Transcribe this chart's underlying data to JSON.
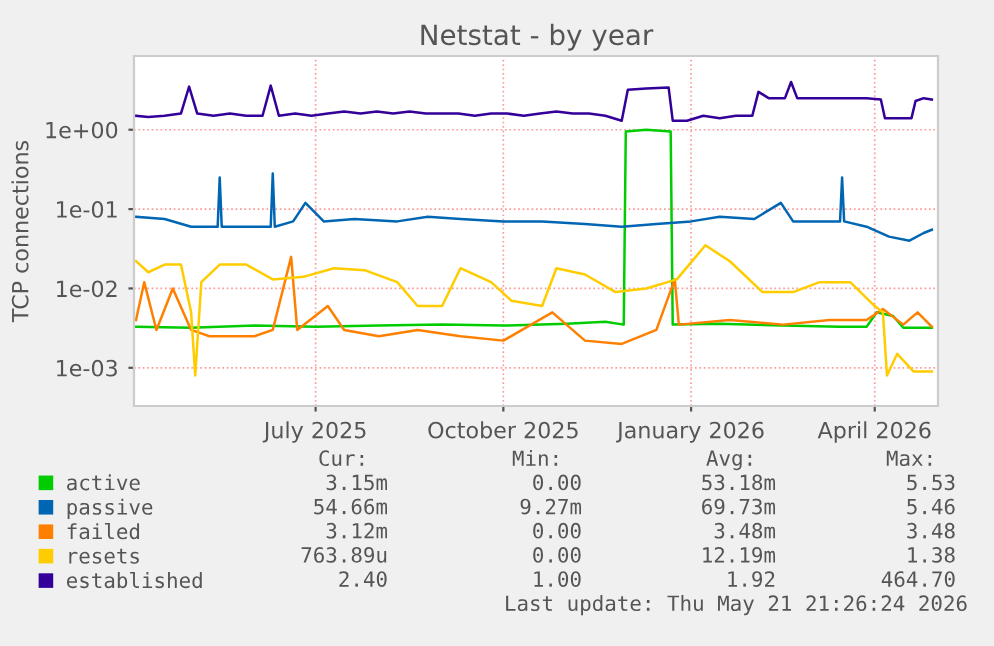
{
  "chart_data": {
    "type": "line",
    "title": "Netstat - by year",
    "ylabel": "TCP connections",
    "log": "y",
    "grid": true,
    "legend": "bottom",
    "xlim": [
      "2025-04-03",
      "2026-05-02"
    ],
    "xticks": [
      {
        "value": "2025-07-01",
        "label": "July 2025"
      },
      {
        "value": "2025-10-01",
        "label": "October 2025"
      },
      {
        "value": "2026-01-01",
        "label": "January 2026"
      },
      {
        "value": "2026-04-01",
        "label": "April 2026"
      }
    ],
    "ylim": [
      0.00033,
      8.5
    ],
    "yticks": [
      {
        "value": 0.001,
        "label": "1e-03"
      },
      {
        "value": 0.01,
        "label": "1e-02"
      },
      {
        "value": 0.1,
        "label": "1e-01"
      },
      {
        "value": 1,
        "label": "1e+00"
      }
    ],
    "series": [
      {
        "name": "active",
        "color": "#00cc00",
        "x": [
          "2025-04-04",
          "2025-05-01",
          "2025-06-01",
          "2025-07-01",
          "2025-08-01",
          "2025-09-01",
          "2025-10-01",
          "2025-11-01",
          "2025-11-20",
          "2025-11-29",
          "2025-11-30",
          "2025-12-10",
          "2025-12-22",
          "2025-12-23",
          "2026-01-15",
          "2026-02-15",
          "2026-03-15",
          "2026-03-28",
          "2026-04-02",
          "2026-04-10",
          "2026-04-15",
          "2026-04-29"
        ],
        "values": [
          0.0033,
          0.0032,
          0.0034,
          0.0033,
          0.0034,
          0.0035,
          0.0034,
          0.0036,
          0.0038,
          0.0035,
          0.95,
          1.0,
          0.95,
          0.0035,
          0.0036,
          0.0034,
          0.0033,
          0.0033,
          0.005,
          0.0045,
          0.0032,
          0.0032
        ]
      },
      {
        "name": "passive",
        "color": "#0066b3",
        "x": [
          "2025-04-04",
          "2025-04-18",
          "2025-05-01",
          "2025-05-14",
          "2025-05-15",
          "2025-05-16",
          "2025-06-01",
          "2025-06-09",
          "2025-06-10",
          "2025-06-11",
          "2025-06-20",
          "2025-06-26",
          "2025-07-05",
          "2025-07-20",
          "2025-08-10",
          "2025-08-25",
          "2025-09-10",
          "2025-10-01",
          "2025-10-20",
          "2025-11-10",
          "2025-11-28",
          "2025-12-15",
          "2026-01-01",
          "2026-01-15",
          "2026-02-01",
          "2026-02-14",
          "2026-02-20",
          "2026-03-05",
          "2026-03-15",
          "2026-03-16",
          "2026-03-17",
          "2026-03-28",
          "2026-04-08",
          "2026-04-18",
          "2026-04-25",
          "2026-04-29"
        ],
        "values": [
          0.08,
          0.075,
          0.06,
          0.06,
          0.25,
          0.06,
          0.06,
          0.06,
          0.28,
          0.06,
          0.07,
          0.12,
          0.07,
          0.075,
          0.07,
          0.08,
          0.075,
          0.07,
          0.07,
          0.065,
          0.06,
          0.065,
          0.07,
          0.08,
          0.075,
          0.12,
          0.07,
          0.07,
          0.07,
          0.25,
          0.07,
          0.06,
          0.045,
          0.04,
          0.05,
          0.055
        ]
      },
      {
        "name": "failed",
        "color": "#ff8000",
        "x": [
          "2025-04-04",
          "2025-04-08",
          "2025-04-14",
          "2025-04-22",
          "2025-05-01",
          "2025-05-10",
          "2025-06-01",
          "2025-06-10",
          "2025-06-19",
          "2025-06-22",
          "2025-07-07",
          "2025-07-15",
          "2025-08-01",
          "2025-08-20",
          "2025-09-10",
          "2025-10-01",
          "2025-10-25",
          "2025-11-10",
          "2025-11-28",
          "2025-12-15",
          "2025-12-24",
          "2025-12-26",
          "2026-01-20",
          "2026-02-15",
          "2026-03-10",
          "2026-03-28",
          "2026-04-05",
          "2026-04-15",
          "2026-04-22",
          "2026-04-29"
        ],
        "values": [
          0.004,
          0.012,
          0.003,
          0.01,
          0.003,
          0.0025,
          0.0025,
          0.003,
          0.025,
          0.003,
          0.006,
          0.003,
          0.0025,
          0.003,
          0.0025,
          0.0022,
          0.005,
          0.0022,
          0.002,
          0.003,
          0.013,
          0.0035,
          0.004,
          0.0035,
          0.004,
          0.004,
          0.0055,
          0.0035,
          0.005,
          0.0033
        ]
      },
      {
        "name": "resets",
        "color": "#ffcc00",
        "x": [
          "2025-04-04",
          "2025-04-10",
          "2025-04-18",
          "2025-04-26",
          "2025-05-01",
          "2025-05-03",
          "2025-05-06",
          "2025-05-15",
          "2025-05-28",
          "2025-06-10",
          "2025-06-25",
          "2025-07-10",
          "2025-07-25",
          "2025-08-10",
          "2025-08-20",
          "2025-09-01",
          "2025-09-10",
          "2025-09-25",
          "2025-10-05",
          "2025-10-20",
          "2025-10-27",
          "2025-11-10",
          "2025-11-25",
          "2025-12-10",
          "2025-12-25",
          "2026-01-08",
          "2026-01-20",
          "2026-02-05",
          "2026-02-20",
          "2026-03-05",
          "2026-03-20",
          "2026-04-01",
          "2026-04-05",
          "2026-04-07",
          "2026-04-12",
          "2026-04-20",
          "2026-04-29"
        ],
        "values": [
          0.022,
          0.016,
          0.02,
          0.02,
          0.005,
          0.0008,
          0.012,
          0.02,
          0.02,
          0.013,
          0.014,
          0.018,
          0.017,
          0.012,
          0.006,
          0.006,
          0.018,
          0.012,
          0.007,
          0.006,
          0.018,
          0.015,
          0.009,
          0.01,
          0.013,
          0.035,
          0.022,
          0.009,
          0.009,
          0.012,
          0.012,
          0.006,
          0.005,
          0.0008,
          0.0015,
          0.0009,
          0.0009
        ]
      },
      {
        "name": "established",
        "color": "#330099",
        "x": [
          "2025-04-04",
          "2025-04-10",
          "2025-04-18",
          "2025-04-26",
          "2025-04-30",
          "2025-05-04",
          "2025-05-12",
          "2025-05-20",
          "2025-05-28",
          "2025-06-05",
          "2025-06-09",
          "2025-06-13",
          "2025-06-21",
          "2025-06-29",
          "2025-07-07",
          "2025-07-15",
          "2025-07-23",
          "2025-07-31",
          "2025-08-08",
          "2025-08-16",
          "2025-08-24",
          "2025-09-01",
          "2025-09-09",
          "2025-09-17",
          "2025-09-25",
          "2025-10-03",
          "2025-10-11",
          "2025-10-19",
          "2025-10-27",
          "2025-11-04",
          "2025-11-12",
          "2025-11-20",
          "2025-11-28",
          "2025-12-01",
          "2025-12-10",
          "2025-12-21",
          "2025-12-23",
          "2025-12-30",
          "2026-01-07",
          "2026-01-15",
          "2026-01-23",
          "2026-01-31",
          "2026-02-03",
          "2026-02-08",
          "2026-02-16",
          "2026-02-19",
          "2026-02-22",
          "2026-03-04",
          "2026-03-12",
          "2026-03-20",
          "2026-03-28",
          "2026-04-04",
          "2026-04-06",
          "2026-04-15",
          "2026-04-19",
          "2026-04-21",
          "2026-04-25",
          "2026-04-29"
        ],
        "values": [
          1.5,
          1.45,
          1.5,
          1.6,
          3.5,
          1.6,
          1.5,
          1.6,
          1.5,
          1.5,
          3.6,
          1.5,
          1.6,
          1.5,
          1.6,
          1.7,
          1.6,
          1.7,
          1.6,
          1.7,
          1.6,
          1.6,
          1.6,
          1.5,
          1.6,
          1.6,
          1.5,
          1.6,
          1.7,
          1.6,
          1.6,
          1.5,
          1.3,
          3.2,
          3.3,
          3.4,
          1.3,
          1.3,
          1.5,
          1.4,
          1.5,
          1.5,
          3.0,
          2.5,
          2.5,
          4.0,
          2.5,
          2.5,
          2.5,
          2.5,
          2.5,
          2.4,
          1.4,
          1.4,
          1.4,
          2.3,
          2.5,
          2.4
        ]
      }
    ],
    "annotations": [
      "Cur:",
      "Min:",
      "Avg:",
      "Max:",
      "3.15m",
      "0.00",
      "53.18m",
      "5.53",
      "54.66m",
      "9.27m",
      "69.73m",
      "5.46",
      "3.12m",
      "0.00",
      "3.48m",
      "3.48",
      "763.89u",
      "0.00",
      "12.19m",
      "1.38",
      "2.40",
      "1.00",
      "1.92",
      "464.70",
      "Last update: Thu May 21 21:26:24 2026"
    ]
  }
}
